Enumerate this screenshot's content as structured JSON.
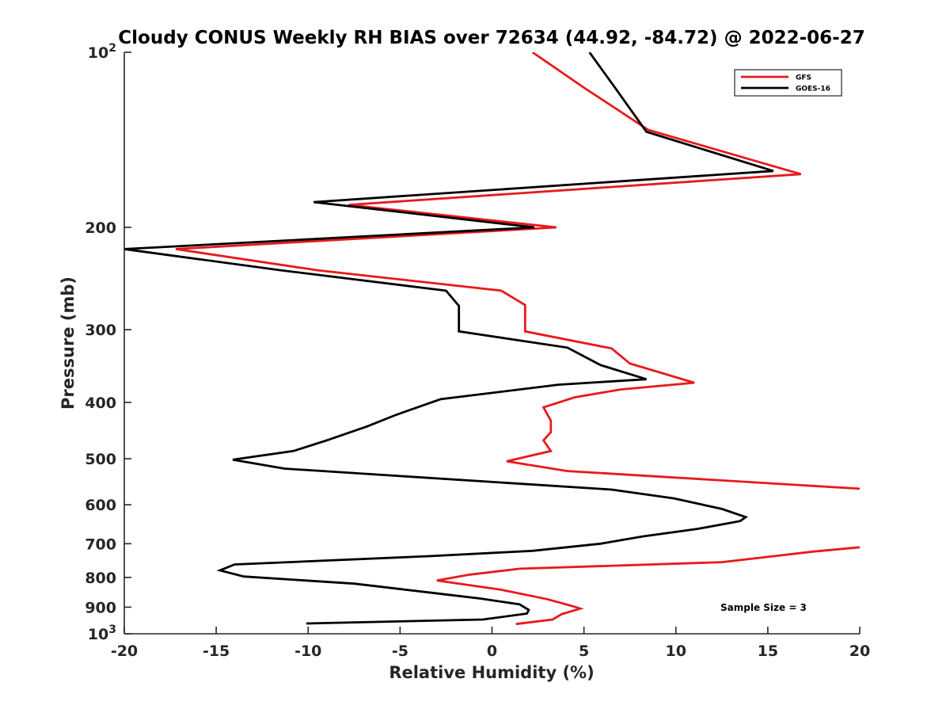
{
  "chart_data": {
    "type": "line",
    "title": "Cloudy CONUS Weekly RH BIAS over 72634 (44.92, -84.72) @ 2022-06-27",
    "xlabel": "Relative Humidity (%)",
    "ylabel": "Pressure (mb)",
    "xlim": [
      -20,
      20
    ],
    "ylim": [
      100,
      1000
    ],
    "y_scale": "log",
    "y_direction": "reversed",
    "grid": false,
    "legend_position": "top-right",
    "annotation": "Sample Size = 3",
    "x_ticks": [
      -20,
      -15,
      -10,
      -5,
      0,
      5,
      10,
      15,
      20
    ],
    "x_tick_labels": [
      "-20",
      "-15",
      "-10",
      "-5",
      "0",
      "5",
      "10",
      "15",
      "20"
    ],
    "y_ticks": [
      100,
      200,
      300,
      400,
      500,
      600,
      700,
      800,
      900,
      1000
    ],
    "y_tick_labels": [
      {
        "base": "10",
        "exp": "2"
      },
      {
        "base": "200",
        "exp": ""
      },
      {
        "base": "300",
        "exp": ""
      },
      {
        "base": "400",
        "exp": ""
      },
      {
        "base": "500",
        "exp": ""
      },
      {
        "base": "600",
        "exp": ""
      },
      {
        "base": "700",
        "exp": ""
      },
      {
        "base": "800",
        "exp": ""
      },
      {
        "base": "900",
        "exp": ""
      },
      {
        "base": "10",
        "exp": "3"
      }
    ],
    "series": [
      {
        "name": "GFS",
        "color": "#e8191b",
        "points": [
          [
            2.2,
            100
          ],
          [
            5.0,
            115
          ],
          [
            8.5,
            136
          ],
          [
            16.8,
            162
          ],
          [
            -7.8,
            183
          ],
          [
            3.5,
            200
          ],
          [
            -17.2,
            218
          ],
          [
            -9.5,
            237
          ],
          [
            0.5,
            257
          ],
          [
            1.8,
            272
          ],
          [
            1.8,
            302
          ],
          [
            6.5,
            323
          ],
          [
            7.5,
            343
          ],
          [
            11.0,
            370
          ],
          [
            7.0,
            380
          ],
          [
            4.5,
            392
          ],
          [
            2.8,
            408
          ],
          [
            3.2,
            430
          ],
          [
            3.2,
            450
          ],
          [
            2.8,
            465
          ],
          [
            3.2,
            485
          ],
          [
            0.8,
            505
          ],
          [
            4.1,
            525
          ],
          [
            20.0,
            563
          ]
        ]
      },
      {
        "name": "GFS",
        "color": "#e8191b",
        "points": [
          [
            20.0,
            710
          ],
          [
            17.5,
            722
          ],
          [
            12.5,
            753
          ],
          [
            1.5,
            773
          ],
          [
            -1.2,
            791
          ],
          [
            -3.0,
            810
          ],
          [
            0.5,
            840
          ],
          [
            3.0,
            872
          ],
          [
            4.3,
            895
          ],
          [
            4.8,
            905
          ],
          [
            3.8,
            925
          ],
          [
            3.3,
            945
          ],
          [
            1.3,
            962
          ]
        ]
      },
      {
        "name": "GOES-16",
        "color": "#000000",
        "points": [
          [
            5.3,
            100
          ],
          [
            6.6,
            114
          ],
          [
            8.4,
            137
          ],
          [
            15.3,
            160
          ],
          [
            -9.7,
            181
          ],
          [
            2.3,
            200
          ],
          [
            -20.0,
            218
          ],
          [
            -11.5,
            237
          ],
          [
            -2.5,
            257
          ],
          [
            -1.8,
            273
          ],
          [
            -1.8,
            302
          ],
          [
            4.1,
            322
          ],
          [
            5.9,
            345
          ],
          [
            8.4,
            365
          ],
          [
            3.6,
            373
          ],
          [
            -2.8,
            395
          ],
          [
            -5.2,
            420
          ],
          [
            -6.8,
            440
          ],
          [
            -9.0,
            465
          ],
          [
            -10.8,
            485
          ],
          [
            -14.1,
            502
          ],
          [
            -11.3,
            520
          ],
          [
            6.5,
            565
          ],
          [
            9.9,
            585
          ],
          [
            12.5,
            610
          ],
          [
            13.8,
            630
          ],
          [
            13.5,
            640
          ],
          [
            11.2,
            660
          ],
          [
            8.2,
            680
          ],
          [
            5.9,
            700
          ],
          [
            2.2,
            720
          ],
          [
            -3.3,
            735
          ],
          [
            -14.0,
            760
          ],
          [
            -14.8,
            778
          ],
          [
            -13.5,
            797
          ],
          [
            -7.5,
            820
          ],
          [
            -3.3,
            850
          ],
          [
            -0.6,
            870
          ],
          [
            1.5,
            890
          ],
          [
            2.0,
            910
          ],
          [
            1.9,
            923
          ],
          [
            -0.5,
            945
          ],
          [
            -10.1,
            960
          ]
        ]
      }
    ],
    "legend": [
      {
        "name": "GFS",
        "color": "#e8191b"
      },
      {
        "name": "GOES-16",
        "color": "#000000"
      }
    ]
  }
}
